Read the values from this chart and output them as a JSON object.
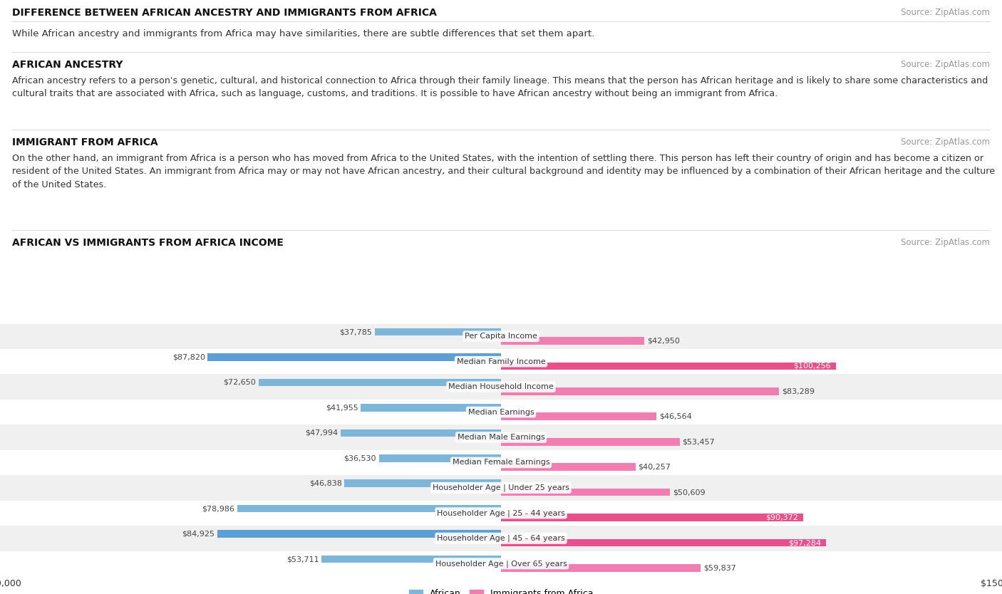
{
  "title_main": "DIFFERENCE BETWEEN AFRICAN ANCESTRY AND IMMIGRANTS FROM AFRICA",
  "source": "Source: ZipAtlas.com",
  "subtitle": "While African ancestry and immigrants from Africa may have similarities, there are subtle differences that set them apart.",
  "section1_title": "AFRICAN ANCESTRY",
  "section1_text": "African ancestry refers to a person's genetic, cultural, and historical connection to Africa through their family lineage. This means that the person has African heritage and is likely to share some characteristics and cultural traits that are associated with Africa, such as language, customs, and traditions. It is possible to have African ancestry without being an immigrant from Africa.",
  "section2_title": "IMMIGRANT FROM AFRICA",
  "section2_text": "On the other hand, an immigrant from Africa is a person who has moved from Africa to the United States, with the intention of settling there. This person has left their country of origin and has become a citizen or resident of the United States. An immigrant from Africa may or may not have African ancestry, and their cultural background and identity may be influenced by a combination of their African heritage and the culture of the United States.",
  "chart_title": "AFRICAN VS IMMIGRANTS FROM AFRICA INCOME",
  "categories": [
    "Per Capita Income",
    "Median Family Income",
    "Median Household Income",
    "Median Earnings",
    "Median Male Earnings",
    "Median Female Earnings",
    "Householder Age | Under 25 years",
    "Householder Age | 25 - 44 years",
    "Householder Age | 45 - 64 years",
    "Householder Age | Over 65 years"
  ],
  "african_values": [
    37785,
    87820,
    72650,
    41955,
    47994,
    36530,
    46838,
    78986,
    84925,
    53711
  ],
  "immigrant_values": [
    42950,
    100256,
    83289,
    46564,
    53457,
    40257,
    50609,
    90372,
    97284,
    59837
  ],
  "african_color": "#7EB6D9",
  "immigrant_color": "#F07EB0",
  "african_label": "African",
  "immigrant_label": "Immigrants from Africa",
  "axis_max": 150000,
  "bg_color": "#FFFFFF",
  "row_bg_light": "#F0F0F0",
  "row_bg_white": "#FFFFFF",
  "african_highlight_indices": [
    1,
    8
  ],
  "immigrant_highlight_indices": [
    1,
    7,
    8
  ],
  "african_highlight_color": "#5B9FD4",
  "immigrant_highlight_color": "#E8508A",
  "highlight_label_color": "#FFFFFF",
  "normal_label_color": "#444444"
}
